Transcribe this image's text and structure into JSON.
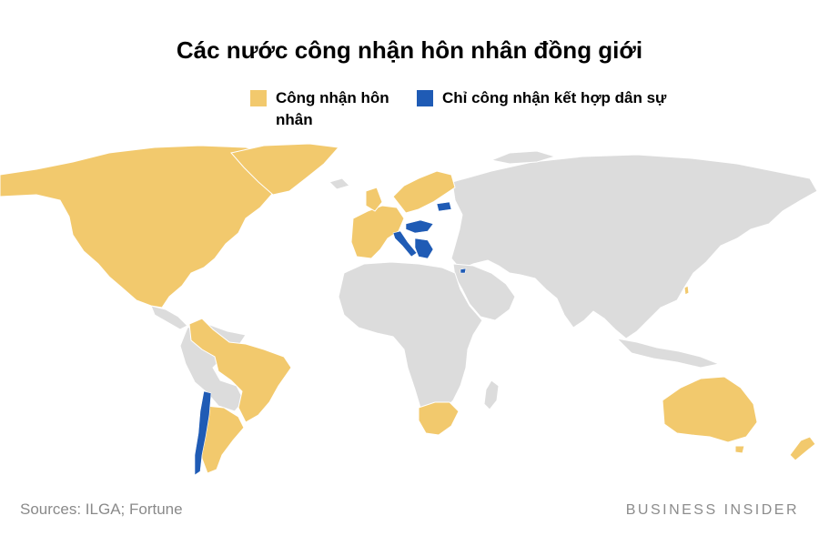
{
  "title": "Các nước công nhận hôn nhân đồng giới",
  "legend": {
    "marriage": {
      "label": "Công nhận hôn nhân",
      "color": "#f2c96d"
    },
    "civil_union": {
      "label": "Chỉ công nhận kết hợp dân sự",
      "color": "#1f5bb5"
    }
  },
  "colors": {
    "other_countries": "#dcdcdc",
    "background": "#ffffff"
  },
  "sources": "Sources: ILGA; Fortune",
  "brand": "BUSINESS INSIDER"
}
